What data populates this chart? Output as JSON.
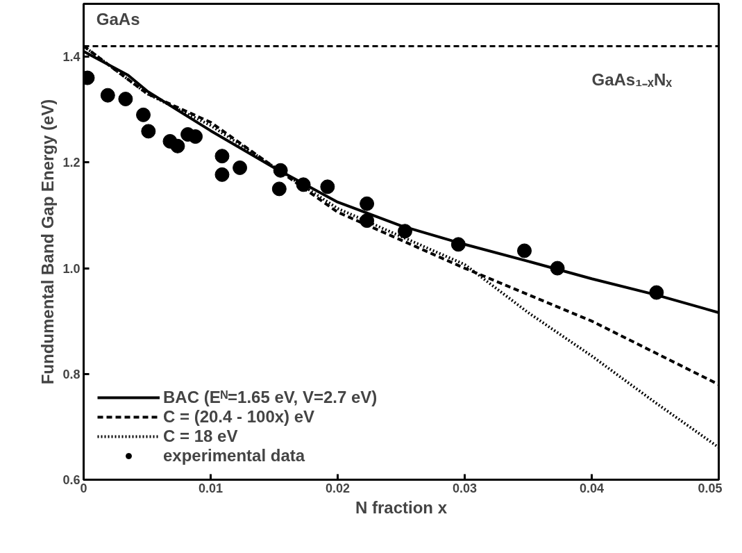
{
  "chart_data": {
    "type": "line",
    "xlabel": "N fraction x",
    "ylabel": "Fundumental Band Gap Energy (eV)",
    "xlim": [
      0,
      0.05
    ],
    "ylim": [
      0.6,
      1.5
    ],
    "xticks": [
      0,
      0.01,
      0.02,
      0.03,
      0.04,
      0.05
    ],
    "yticks": [
      0.6,
      0.8,
      {
        "value": 1.0,
        "label": "1.0"
      },
      1.2,
      1.4
    ],
    "grid": false,
    "legend": "bottom left",
    "series": [
      {
        "name": "BAC (Eᴺ=1.65 eV, V=2.7 eV)",
        "color": "#000000",
        "line_style": "solid",
        "x": [
          0,
          0.0035,
          0.005,
          0.01,
          0.015,
          0.02,
          0.025,
          0.03,
          0.035,
          0.04,
          0.045,
          0.05
        ],
        "values": [
          1.41,
          1.365,
          1.335,
          1.26,
          1.19,
          1.125,
          1.08,
          1.045,
          1.013,
          0.98,
          0.95,
          0.916
        ]
      },
      {
        "name": "C = (20.4 - 100x) eV",
        "color": "#000000",
        "line_style": "dashed",
        "x": [
          0,
          0.005,
          0.01,
          0.02,
          0.03,
          0.035,
          0.04,
          0.045,
          0.05
        ],
        "values": [
          1.42,
          1.33,
          1.276,
          1.106,
          1.0,
          0.95,
          0.9,
          0.84,
          0.78
        ]
      },
      {
        "name": "C = 18 eV",
        "color": "#000000",
        "line_style": "dotted",
        "x": [
          0,
          0.005,
          0.01,
          0.02,
          0.03,
          0.035,
          0.04,
          0.045,
          0.05
        ],
        "values": [
          1.42,
          1.33,
          1.27,
          1.113,
          1.007,
          0.916,
          0.834,
          0.746,
          0.661
        ]
      },
      {
        "name": "experimental data",
        "type": "scatter",
        "marker": "circle",
        "color": "#000000",
        "x": [
          0.0003,
          0.0019,
          0.0033,
          0.0047,
          0.0051,
          0.0068,
          0.0074,
          0.0082,
          0.0088,
          0.0109,
          0.0109,
          0.0123,
          0.0154,
          0.0155,
          0.0173,
          0.0192,
          0.0223,
          0.0223,
          0.0253,
          0.0295,
          0.0347,
          0.0373,
          0.0451
        ],
        "values": [
          1.36,
          1.327,
          1.32,
          1.29,
          1.259,
          1.24,
          1.231,
          1.253,
          1.249,
          1.212,
          1.177,
          1.19,
          1.15,
          1.185,
          1.158,
          1.154,
          1.122,
          1.09,
          1.07,
          1.045,
          1.033,
          1.0,
          0.954
        ]
      }
    ],
    "ref_lines": [
      {
        "axis": "y",
        "value": 1.42,
        "color": "#000000",
        "line_style": "dashed"
      }
    ],
    "annotations": [
      "GaAs",
      "GaAs₁₋ₓNₓ"
    ]
  }
}
